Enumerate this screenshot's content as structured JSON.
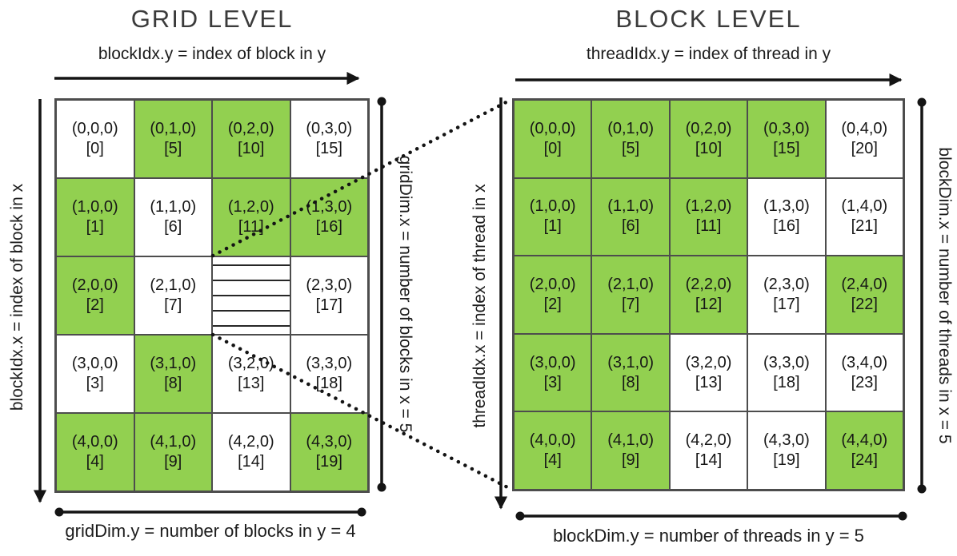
{
  "colors": {
    "green": "#92D050",
    "grid_border": "#4d4d4d",
    "line": "#141414",
    "title": "#3b3b3b",
    "text": "#1c1c1c"
  },
  "grid_level": {
    "title": "GRID LEVEL",
    "top_label": "blockIdx.y = index of block in y",
    "left_label": "blockIdx.x = index of block in x",
    "right_label": "gridDim.x = number of blocks in x = 5",
    "bottom_label": "gridDim.y = number of blocks in y = 4",
    "rows": [
      [
        {
          "coord": "(0,0,0)",
          "index": "[0]",
          "green": false
        },
        {
          "coord": "(0,1,0)",
          "index": "[5]",
          "green": true
        },
        {
          "coord": "(0,2,0)",
          "index": "[10]",
          "green": true
        },
        {
          "coord": "(0,3,0)",
          "index": "[15]",
          "green": false
        }
      ],
      [
        {
          "coord": "(1,0,0)",
          "index": "[1]",
          "green": true
        },
        {
          "coord": "(1,1,0)",
          "index": "[6]",
          "green": false
        },
        {
          "coord": "(1,2,0)",
          "index": "[11]",
          "green": true
        },
        {
          "coord": "(1,3,0)",
          "index": "[16]",
          "green": true
        }
      ],
      [
        {
          "coord": "(2,0,0)",
          "index": "[2]",
          "green": true
        },
        {
          "coord": "(2,1,0)",
          "index": "[7]",
          "green": false
        },
        {
          "zoomed_block": true
        },
        {
          "coord": "(2,3,0)",
          "index": "[17]",
          "green": false
        }
      ],
      [
        {
          "coord": "(3,0,0)",
          "index": "[3]",
          "green": false
        },
        {
          "coord": "(3,1,0)",
          "index": "[8]",
          "green": true
        },
        {
          "coord": "(3,2,0)",
          "index": "[13]",
          "green": false
        },
        {
          "coord": "(3,3,0)",
          "index": "[18]",
          "green": false
        }
      ],
      [
        {
          "coord": "(4,0,0)",
          "index": "[4]",
          "green": true
        },
        {
          "coord": "(4,1,0)",
          "index": "[9]",
          "green": true
        },
        {
          "coord": "(4,2,0)",
          "index": "[14]",
          "green": false
        },
        {
          "coord": "(4,3,0)",
          "index": "[19]",
          "green": true
        }
      ]
    ]
  },
  "block_level": {
    "title": "BLOCK LEVEL",
    "top_label": "threadIdx.y = index of thread in y",
    "left_label": "threadIdx.x = index of thread in x",
    "right_label": "blockDim.x = number of threads in x = 5",
    "bottom_label": "blockDim.y = number of threads in y = 5",
    "rows": [
      [
        {
          "coord": "(0,0,0)",
          "index": "[0]",
          "green": true
        },
        {
          "coord": "(0,1,0)",
          "index": "[5]",
          "green": true
        },
        {
          "coord": "(0,2,0)",
          "index": "[10]",
          "green": true
        },
        {
          "coord": "(0,3,0)",
          "index": "[15]",
          "green": true
        },
        {
          "coord": "(0,4,0)",
          "index": "[20]",
          "green": false
        }
      ],
      [
        {
          "coord": "(1,0,0)",
          "index": "[1]",
          "green": true
        },
        {
          "coord": "(1,1,0)",
          "index": "[6]",
          "green": true
        },
        {
          "coord": "(1,2,0)",
          "index": "[11]",
          "green": true
        },
        {
          "coord": "(1,3,0)",
          "index": "[16]",
          "green": false
        },
        {
          "coord": "(1,4,0)",
          "index": "[21]",
          "green": false
        }
      ],
      [
        {
          "coord": "(2,0,0)",
          "index": "[2]",
          "green": true
        },
        {
          "coord": "(2,1,0)",
          "index": "[7]",
          "green": true
        },
        {
          "coord": "(2,2,0)",
          "index": "[12]",
          "green": true
        },
        {
          "coord": "(2,3,0)",
          "index": "[17]",
          "green": false
        },
        {
          "coord": "(2,4,0)",
          "index": "[22]",
          "green": true
        }
      ],
      [
        {
          "coord": "(3,0,0)",
          "index": "[3]",
          "green": true
        },
        {
          "coord": "(3,1,0)",
          "index": "[8]",
          "green": true
        },
        {
          "coord": "(3,2,0)",
          "index": "[13]",
          "green": false
        },
        {
          "coord": "(3,3,0)",
          "index": "[18]",
          "green": false
        },
        {
          "coord": "(3,4,0)",
          "index": "[23]",
          "green": false
        }
      ],
      [
        {
          "coord": "(4,0,0)",
          "index": "[4]",
          "green": true
        },
        {
          "coord": "(4,1,0)",
          "index": "[9]",
          "green": true
        },
        {
          "coord": "(4,2,0)",
          "index": "[14]",
          "green": false
        },
        {
          "coord": "(4,3,0)",
          "index": "[19]",
          "green": false
        },
        {
          "coord": "(4,4,0)",
          "index": "[24]",
          "green": true
        }
      ]
    ]
  },
  "zoomed_block_pattern": [
    [
      1,
      1,
      1,
      1,
      0
    ],
    [
      1,
      1,
      1,
      0,
      0
    ],
    [
      1,
      1,
      1,
      0,
      1
    ],
    [
      1,
      1,
      0,
      0,
      0
    ],
    [
      1,
      1,
      0,
      0,
      1
    ]
  ]
}
